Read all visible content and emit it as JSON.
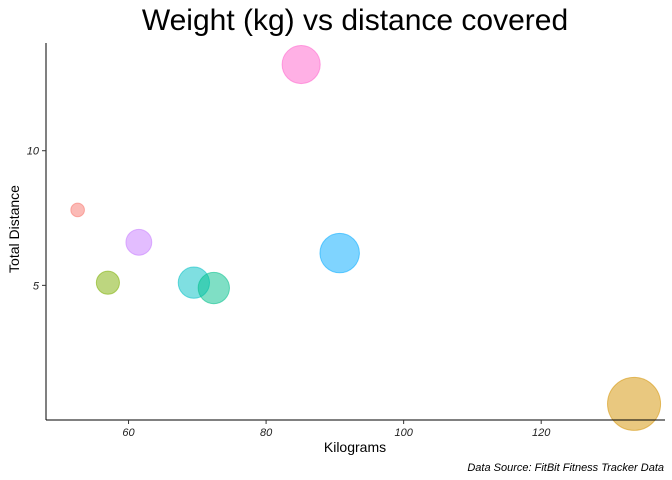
{
  "chart_data": {
    "type": "scatter",
    "title": "Weight (kg) vs distance covered",
    "xlabel": "Kilograms",
    "ylabel": "Total Distance",
    "caption": "Data Source: FitBit Fitness Tracker Data",
    "xlim": [
      48,
      138
    ],
    "ylim": [
      0,
      14
    ],
    "x_ticks": [
      60,
      80,
      100,
      120
    ],
    "y_ticks": [
      5,
      10
    ],
    "grid": false,
    "legend": "none",
    "points": [
      {
        "x": 52.6,
        "y": 7.8,
        "size": 1.0,
        "color": "#F8766D"
      },
      {
        "x": 57.0,
        "y": 5.1,
        "size": 1.7,
        "color": "#7CAE00"
      },
      {
        "x": 61.5,
        "y": 6.6,
        "size": 1.9,
        "color": "#C77CFF"
      },
      {
        "x": 69.5,
        "y": 5.1,
        "size": 2.3,
        "color": "#00BFC4"
      },
      {
        "x": 72.4,
        "y": 4.9,
        "size": 2.3,
        "color": "#00C08B"
      },
      {
        "x": 85.1,
        "y": 13.2,
        "size": 2.8,
        "color": "#FF61CC"
      },
      {
        "x": 90.7,
        "y": 6.2,
        "size": 2.9,
        "color": "#00A9FF"
      },
      {
        "x": 133.5,
        "y": 0.6,
        "size": 3.9,
        "color": "#D39200"
      }
    ]
  }
}
